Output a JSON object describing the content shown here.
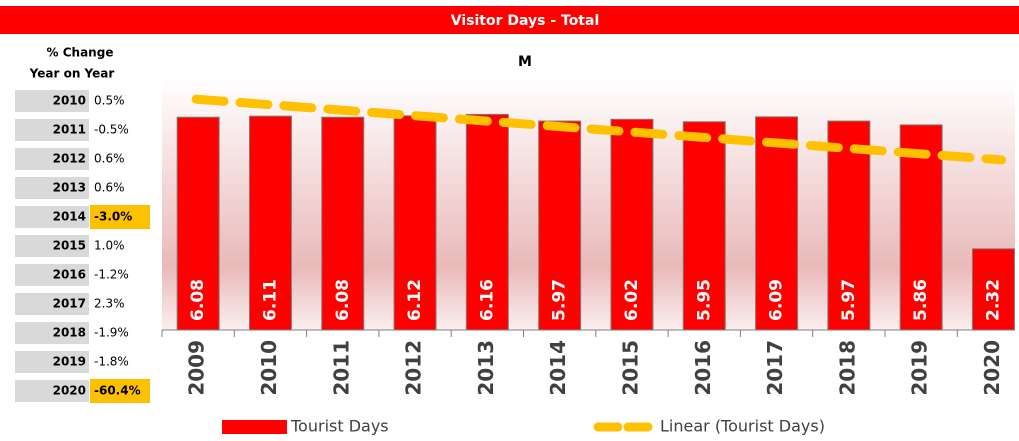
{
  "chart_data": {
    "type": "bar",
    "banner": "Visitor Days - Total",
    "title": "M",
    "categories": [
      "2009",
      "2010",
      "2011",
      "2012",
      "2013",
      "2014",
      "2015",
      "2016",
      "2017",
      "2018",
      "2019",
      "2020"
    ],
    "series": [
      {
        "name": "Tourist Days",
        "color": "#ff0000",
        "values": [
          6.08,
          6.11,
          6.08,
          6.12,
          6.16,
          5.97,
          6.02,
          5.95,
          6.09,
          5.97,
          5.86,
          2.32
        ]
      }
    ],
    "trendline": {
      "name": "Linear (Tourist Days)",
      "color": "#ffc000"
    },
    "ylim": [
      0,
      7.2
    ]
  },
  "table": {
    "header": [
      "% Change",
      "Year on Year"
    ],
    "highlight_color": "#ffc000",
    "rows": [
      {
        "year": "2010",
        "change": "0.5%",
        "highlight": false
      },
      {
        "year": "2011",
        "change": "-0.5%",
        "highlight": false
      },
      {
        "year": "2012",
        "change": "0.6%",
        "highlight": false
      },
      {
        "year": "2013",
        "change": "0.6%",
        "highlight": false
      },
      {
        "year": "2014",
        "change": "-3.0%",
        "highlight": true
      },
      {
        "year": "2015",
        "change": "1.0%",
        "highlight": false
      },
      {
        "year": "2016",
        "change": "-1.2%",
        "highlight": false
      },
      {
        "year": "2017",
        "change": "2.3%",
        "highlight": false
      },
      {
        "year": "2018",
        "change": "-1.9%",
        "highlight": false
      },
      {
        "year": "2019",
        "change": "-1.8%",
        "highlight": false
      },
      {
        "year": "2020",
        "change": "-60.4%",
        "highlight": true
      }
    ]
  }
}
